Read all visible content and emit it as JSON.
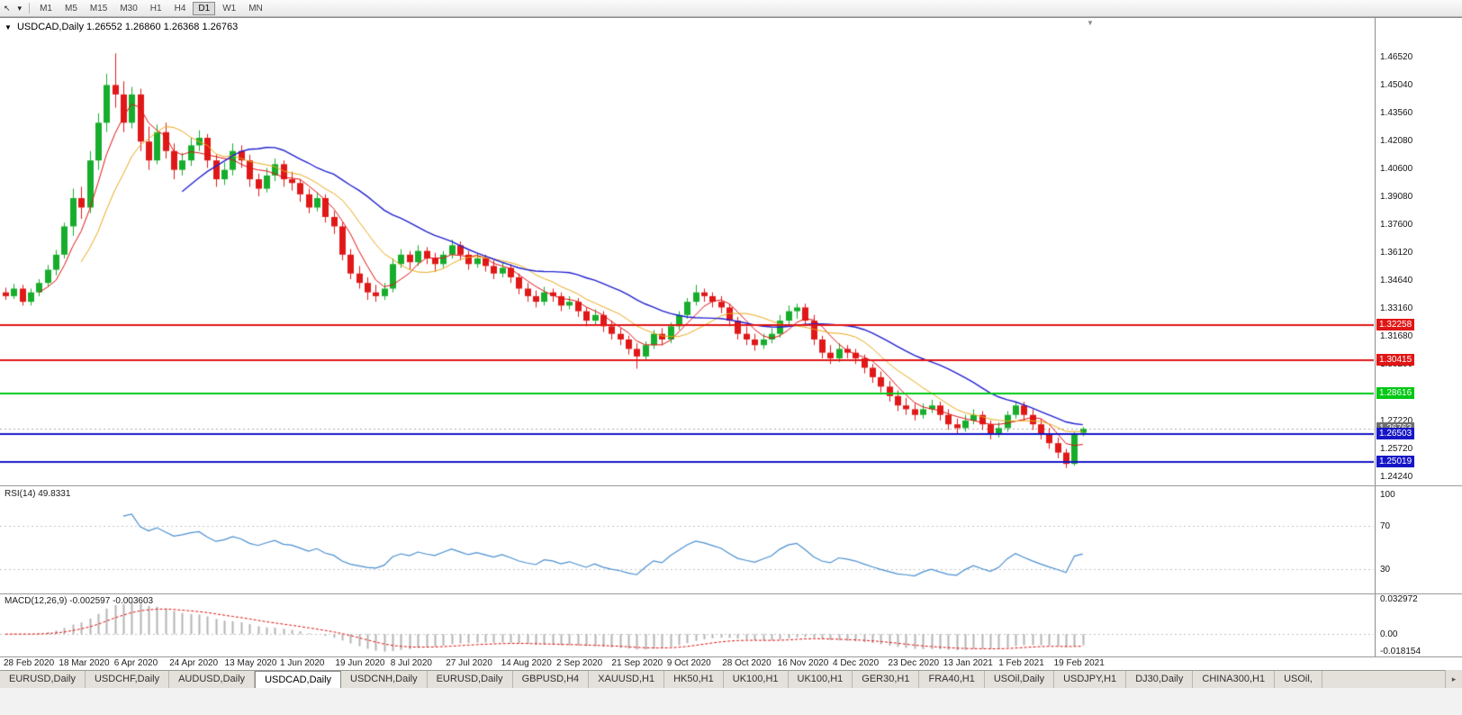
{
  "toolbar": {
    "timeframes": [
      "M1",
      "M5",
      "M15",
      "M30",
      "H1",
      "H4",
      "D1",
      "W1",
      "MN"
    ],
    "active_timeframe": "D1",
    "cursor_icon": "↖",
    "dropdown_icon": "▾"
  },
  "chart": {
    "symbol": "USDCAD,Daily",
    "ohlc": "1.26552 1.26860 1.26368 1.26763",
    "collapse_icon": "▼",
    "price_axis": {
      "ticks": [
        "1.46520",
        "1.45040",
        "1.43560",
        "1.42080",
        "1.40600",
        "1.39080",
        "1.37600",
        "1.36120",
        "1.34640",
        "1.33160",
        "1.31680",
        "1.30200",
        "1.28720",
        "1.27220",
        "1.25720",
        "1.24240"
      ],
      "min": 1.24,
      "max": 1.476
    },
    "hlines": [
      {
        "value": 1.32258,
        "label": "1.32258",
        "color": "#e01616"
      },
      {
        "value": 1.30415,
        "label": "1.30415",
        "color": "#e01616"
      },
      {
        "value": 1.28616,
        "label": "1.28616",
        "color": "#00c814"
      },
      {
        "value": 1.26503,
        "label": "1.26503",
        "color": "#1616c8"
      },
      {
        "value": 1.25019,
        "label": "1.25019",
        "color": "#1616c8"
      }
    ],
    "current_price": {
      "value": 1.26763,
      "label": "1.26763",
      "color": "#6f6f6f"
    },
    "ma": {
      "fast": {
        "period": 5,
        "color": "#e01010"
      },
      "mid": {
        "period": 10,
        "color": "#e8a818"
      },
      "slow": {
        "period": 22,
        "color": "#2020d0"
      }
    },
    "colors": {
      "up": "#17ad2c",
      "down": "#e01818"
    },
    "candles": [
      [
        1.34,
        1.3425,
        1.336,
        1.338
      ],
      [
        1.338,
        1.3445,
        1.3365,
        1.342
      ],
      [
        1.342,
        1.344,
        1.333,
        1.335
      ],
      [
        1.335,
        1.342,
        1.333,
        1.34
      ],
      [
        1.34,
        1.347,
        1.338,
        1.345
      ],
      [
        1.345,
        1.3545,
        1.343,
        1.352
      ],
      [
        1.352,
        1.3625,
        1.349,
        1.36
      ],
      [
        1.36,
        1.377,
        1.358,
        1.375
      ],
      [
        1.375,
        1.395,
        1.37,
        1.39
      ],
      [
        1.39,
        1.396,
        1.379,
        1.385
      ],
      [
        1.385,
        1.415,
        1.382,
        1.41
      ],
      [
        1.41,
        1.435,
        1.405,
        1.43
      ],
      [
        1.43,
        1.456,
        1.425,
        1.45
      ],
      [
        1.45,
        1.4668,
        1.438,
        1.445
      ],
      [
        1.445,
        1.452,
        1.425,
        1.43
      ],
      [
        1.43,
        1.449,
        1.427,
        1.445
      ],
      [
        1.445,
        1.448,
        1.415,
        1.42
      ],
      [
        1.42,
        1.428,
        1.405,
        1.41
      ],
      [
        1.41,
        1.429,
        1.408,
        1.425
      ],
      [
        1.425,
        1.43,
        1.411,
        1.415
      ],
      [
        1.415,
        1.419,
        1.4,
        1.405
      ],
      [
        1.405,
        1.414,
        1.402,
        1.41
      ],
      [
        1.41,
        1.422,
        1.407,
        1.418
      ],
      [
        1.418,
        1.426,
        1.415,
        1.422
      ],
      [
        1.422,
        1.424,
        1.406,
        1.41
      ],
      [
        1.41,
        1.413,
        1.396,
        1.4
      ],
      [
        1.4,
        1.409,
        1.397,
        1.405
      ],
      [
        1.405,
        1.419,
        1.402,
        1.415
      ],
      [
        1.415,
        1.418,
        1.406,
        1.41
      ],
      [
        1.41,
        1.413,
        1.396,
        1.4
      ],
      [
        1.4,
        1.403,
        1.391,
        1.395
      ],
      [
        1.395,
        1.406,
        1.393,
        1.402
      ],
      [
        1.402,
        1.411,
        1.399,
        1.408
      ],
      [
        1.408,
        1.41,
        1.396,
        1.4
      ],
      [
        1.4,
        1.404,
        1.394,
        1.398
      ],
      [
        1.398,
        1.4,
        1.388,
        1.392
      ],
      [
        1.392,
        1.395,
        1.382,
        1.385
      ],
      [
        1.385,
        1.393,
        1.383,
        1.39
      ],
      [
        1.39,
        1.392,
        1.377,
        1.38
      ],
      [
        1.38,
        1.383,
        1.371,
        1.375
      ],
      [
        1.375,
        1.377,
        1.357,
        1.36
      ],
      [
        1.36,
        1.363,
        1.347,
        1.35
      ],
      [
        1.35,
        1.354,
        1.342,
        1.345
      ],
      [
        1.345,
        1.348,
        1.336,
        1.34
      ],
      [
        1.34,
        1.344,
        1.335,
        1.338
      ],
      [
        1.338,
        1.345,
        1.336,
        1.342
      ],
      [
        1.342,
        1.358,
        1.34,
        1.355
      ],
      [
        1.355,
        1.363,
        1.353,
        1.36
      ],
      [
        1.36,
        1.362,
        1.352,
        1.356
      ],
      [
        1.356,
        1.365,
        1.354,
        1.362
      ],
      [
        1.362,
        1.364,
        1.355,
        1.358
      ],
      [
        1.358,
        1.361,
        1.351,
        1.355
      ],
      [
        1.355,
        1.362,
        1.353,
        1.36
      ],
      [
        1.36,
        1.368,
        1.358,
        1.365
      ],
      [
        1.365,
        1.367,
        1.357,
        1.36
      ],
      [
        1.36,
        1.362,
        1.352,
        1.355
      ],
      [
        1.355,
        1.361,
        1.353,
        1.358
      ],
      [
        1.358,
        1.36,
        1.351,
        1.354
      ],
      [
        1.354,
        1.357,
        1.347,
        1.35
      ],
      [
        1.35,
        1.356,
        1.348,
        1.353
      ],
      [
        1.353,
        1.355,
        1.345,
        1.348
      ],
      [
        1.348,
        1.35,
        1.339,
        1.342
      ],
      [
        1.342,
        1.345,
        1.335,
        1.338
      ],
      [
        1.338,
        1.341,
        1.332,
        1.335
      ],
      [
        1.335,
        1.343,
        1.333,
        1.34
      ],
      [
        1.34,
        1.342,
        1.335,
        1.338
      ],
      [
        1.338,
        1.34,
        1.33,
        1.333
      ],
      [
        1.333,
        1.338,
        1.331,
        1.335
      ],
      [
        1.335,
        1.337,
        1.327,
        1.33
      ],
      [
        1.33,
        1.332,
        1.322,
        1.325
      ],
      [
        1.325,
        1.331,
        1.323,
        1.328
      ],
      [
        1.328,
        1.33,
        1.319,
        1.322
      ],
      [
        1.322,
        1.325,
        1.315,
        1.318
      ],
      [
        1.318,
        1.321,
        1.312,
        1.315
      ],
      [
        1.315,
        1.317,
        1.307,
        1.31
      ],
      [
        1.31,
        1.313,
        1.2995,
        1.306
      ],
      [
        1.306,
        1.314,
        1.304,
        1.312
      ],
      [
        1.312,
        1.32,
        1.31,
        1.318
      ],
      [
        1.318,
        1.321,
        1.312,
        1.315
      ],
      [
        1.315,
        1.324,
        1.313,
        1.322
      ],
      [
        1.322,
        1.33,
        1.32,
        1.328
      ],
      [
        1.328,
        1.337,
        1.326,
        1.335
      ],
      [
        1.335,
        1.344,
        1.333,
        1.34
      ],
      [
        1.34,
        1.342,
        1.335,
        1.338
      ],
      [
        1.338,
        1.34,
        1.332,
        1.335
      ],
      [
        1.335,
        1.338,
        1.329,
        1.332
      ],
      [
        1.332,
        1.334,
        1.322,
        1.325
      ],
      [
        1.325,
        1.327,
        1.315,
        1.318
      ],
      [
        1.318,
        1.322,
        1.312,
        1.315
      ],
      [
        1.315,
        1.318,
        1.309,
        1.312
      ],
      [
        1.312,
        1.318,
        1.31,
        1.315
      ],
      [
        1.315,
        1.321,
        1.313,
        1.318
      ],
      [
        1.318,
        1.328,
        1.316,
        1.325
      ],
      [
        1.325,
        1.333,
        1.323,
        1.33
      ],
      [
        1.33,
        1.334,
        1.326,
        1.332
      ],
      [
        1.332,
        1.334,
        1.322,
        1.325
      ],
      [
        1.325,
        1.328,
        1.312,
        1.315
      ],
      [
        1.315,
        1.317,
        1.305,
        1.308
      ],
      [
        1.308,
        1.312,
        1.302,
        1.305
      ],
      [
        1.305,
        1.313,
        1.303,
        1.31
      ],
      [
        1.31,
        1.312,
        1.305,
        1.308
      ],
      [
        1.308,
        1.31,
        1.302,
        1.305
      ],
      [
        1.305,
        1.307,
        1.297,
        1.3
      ],
      [
        1.3,
        1.302,
        1.292,
        1.295
      ],
      [
        1.295,
        1.298,
        1.287,
        1.29
      ],
      [
        1.29,
        1.293,
        1.282,
        1.285
      ],
      [
        1.285,
        1.288,
        1.277,
        1.28
      ],
      [
        1.28,
        1.284,
        1.275,
        1.278
      ],
      [
        1.278,
        1.281,
        1.272,
        1.275
      ],
      [
        1.275,
        1.281,
        1.273,
        1.278
      ],
      [
        1.278,
        1.283,
        1.276,
        1.28
      ],
      [
        1.28,
        1.282,
        1.272,
        1.275
      ],
      [
        1.275,
        1.278,
        1.267,
        1.27
      ],
      [
        1.27,
        1.273,
        1.265,
        1.268
      ],
      [
        1.268,
        1.275,
        1.266,
        1.272
      ],
      [
        1.272,
        1.278,
        1.27,
        1.275
      ],
      [
        1.275,
        1.277,
        1.267,
        1.27
      ],
      [
        1.27,
        1.272,
        1.262,
        1.265
      ],
      [
        1.265,
        1.271,
        1.263,
        1.268
      ],
      [
        1.268,
        1.277,
        1.266,
        1.275
      ],
      [
        1.275,
        1.282,
        1.273,
        1.28
      ],
      [
        1.28,
        1.282,
        1.272,
        1.275
      ],
      [
        1.275,
        1.278,
        1.267,
        1.27
      ],
      [
        1.27,
        1.273,
        1.262,
        1.265
      ],
      [
        1.265,
        1.268,
        1.257,
        1.26
      ],
      [
        1.26,
        1.263,
        1.252,
        1.255
      ],
      [
        1.255,
        1.257,
        1.2468,
        1.249
      ],
      [
        1.249,
        1.266,
        1.248,
        1.265
      ],
      [
        1.2655,
        1.2686,
        1.2637,
        1.2676
      ]
    ]
  },
  "rsi": {
    "label": "RSI(14) 49.8331",
    "period": 14,
    "ticks": [
      "100",
      "70",
      "30"
    ],
    "levels": [
      70,
      30
    ],
    "color": "#4a8fd0"
  },
  "macd": {
    "label": "MACD(12,26,9) -0.002597 -0.003603",
    "ticks": [
      "0.032972",
      "0.00",
      "-0.018154"
    ],
    "max": 0.032972,
    "min": -0.018154,
    "hist_color": "#b4b4b4",
    "signal_color": "#e01010"
  },
  "time_axis": {
    "labels": [
      "28 Feb 2020",
      "18 Mar 2020",
      "6 Apr 2020",
      "24 Apr 2020",
      "13 May 2020",
      "1 Jun 2020",
      "19 Jun 2020",
      "8 Jul 2020",
      "27 Jul 2020",
      "14 Aug 2020",
      "2 Sep 2020",
      "21 Sep 2020",
      "9 Oct 2020",
      "28 Oct 2020",
      "16 Nov 2020",
      "4 Dec 2020",
      "23 Dec 2020",
      "13 Jan 2021",
      "1 Feb 2021",
      "19 Feb 2021"
    ]
  },
  "tabs": {
    "active_index": 3,
    "scroll_right_icon": "▸",
    "items": [
      "EURUSD,Daily",
      "USDCHF,Daily",
      "AUDUSD,Daily",
      "USDCAD,Daily",
      "USDCNH,Daily",
      "EURUSD,Daily",
      "GBPUSD,H4",
      "XAUUSD,H1",
      "HK50,H1",
      "UK100,H1",
      "UK100,H1",
      "GER30,H1",
      "FRA40,H1",
      "USOil,Daily",
      "USDJPY,H1",
      "DJ30,Daily",
      "CHINA300,H1",
      "USOil,"
    ]
  }
}
